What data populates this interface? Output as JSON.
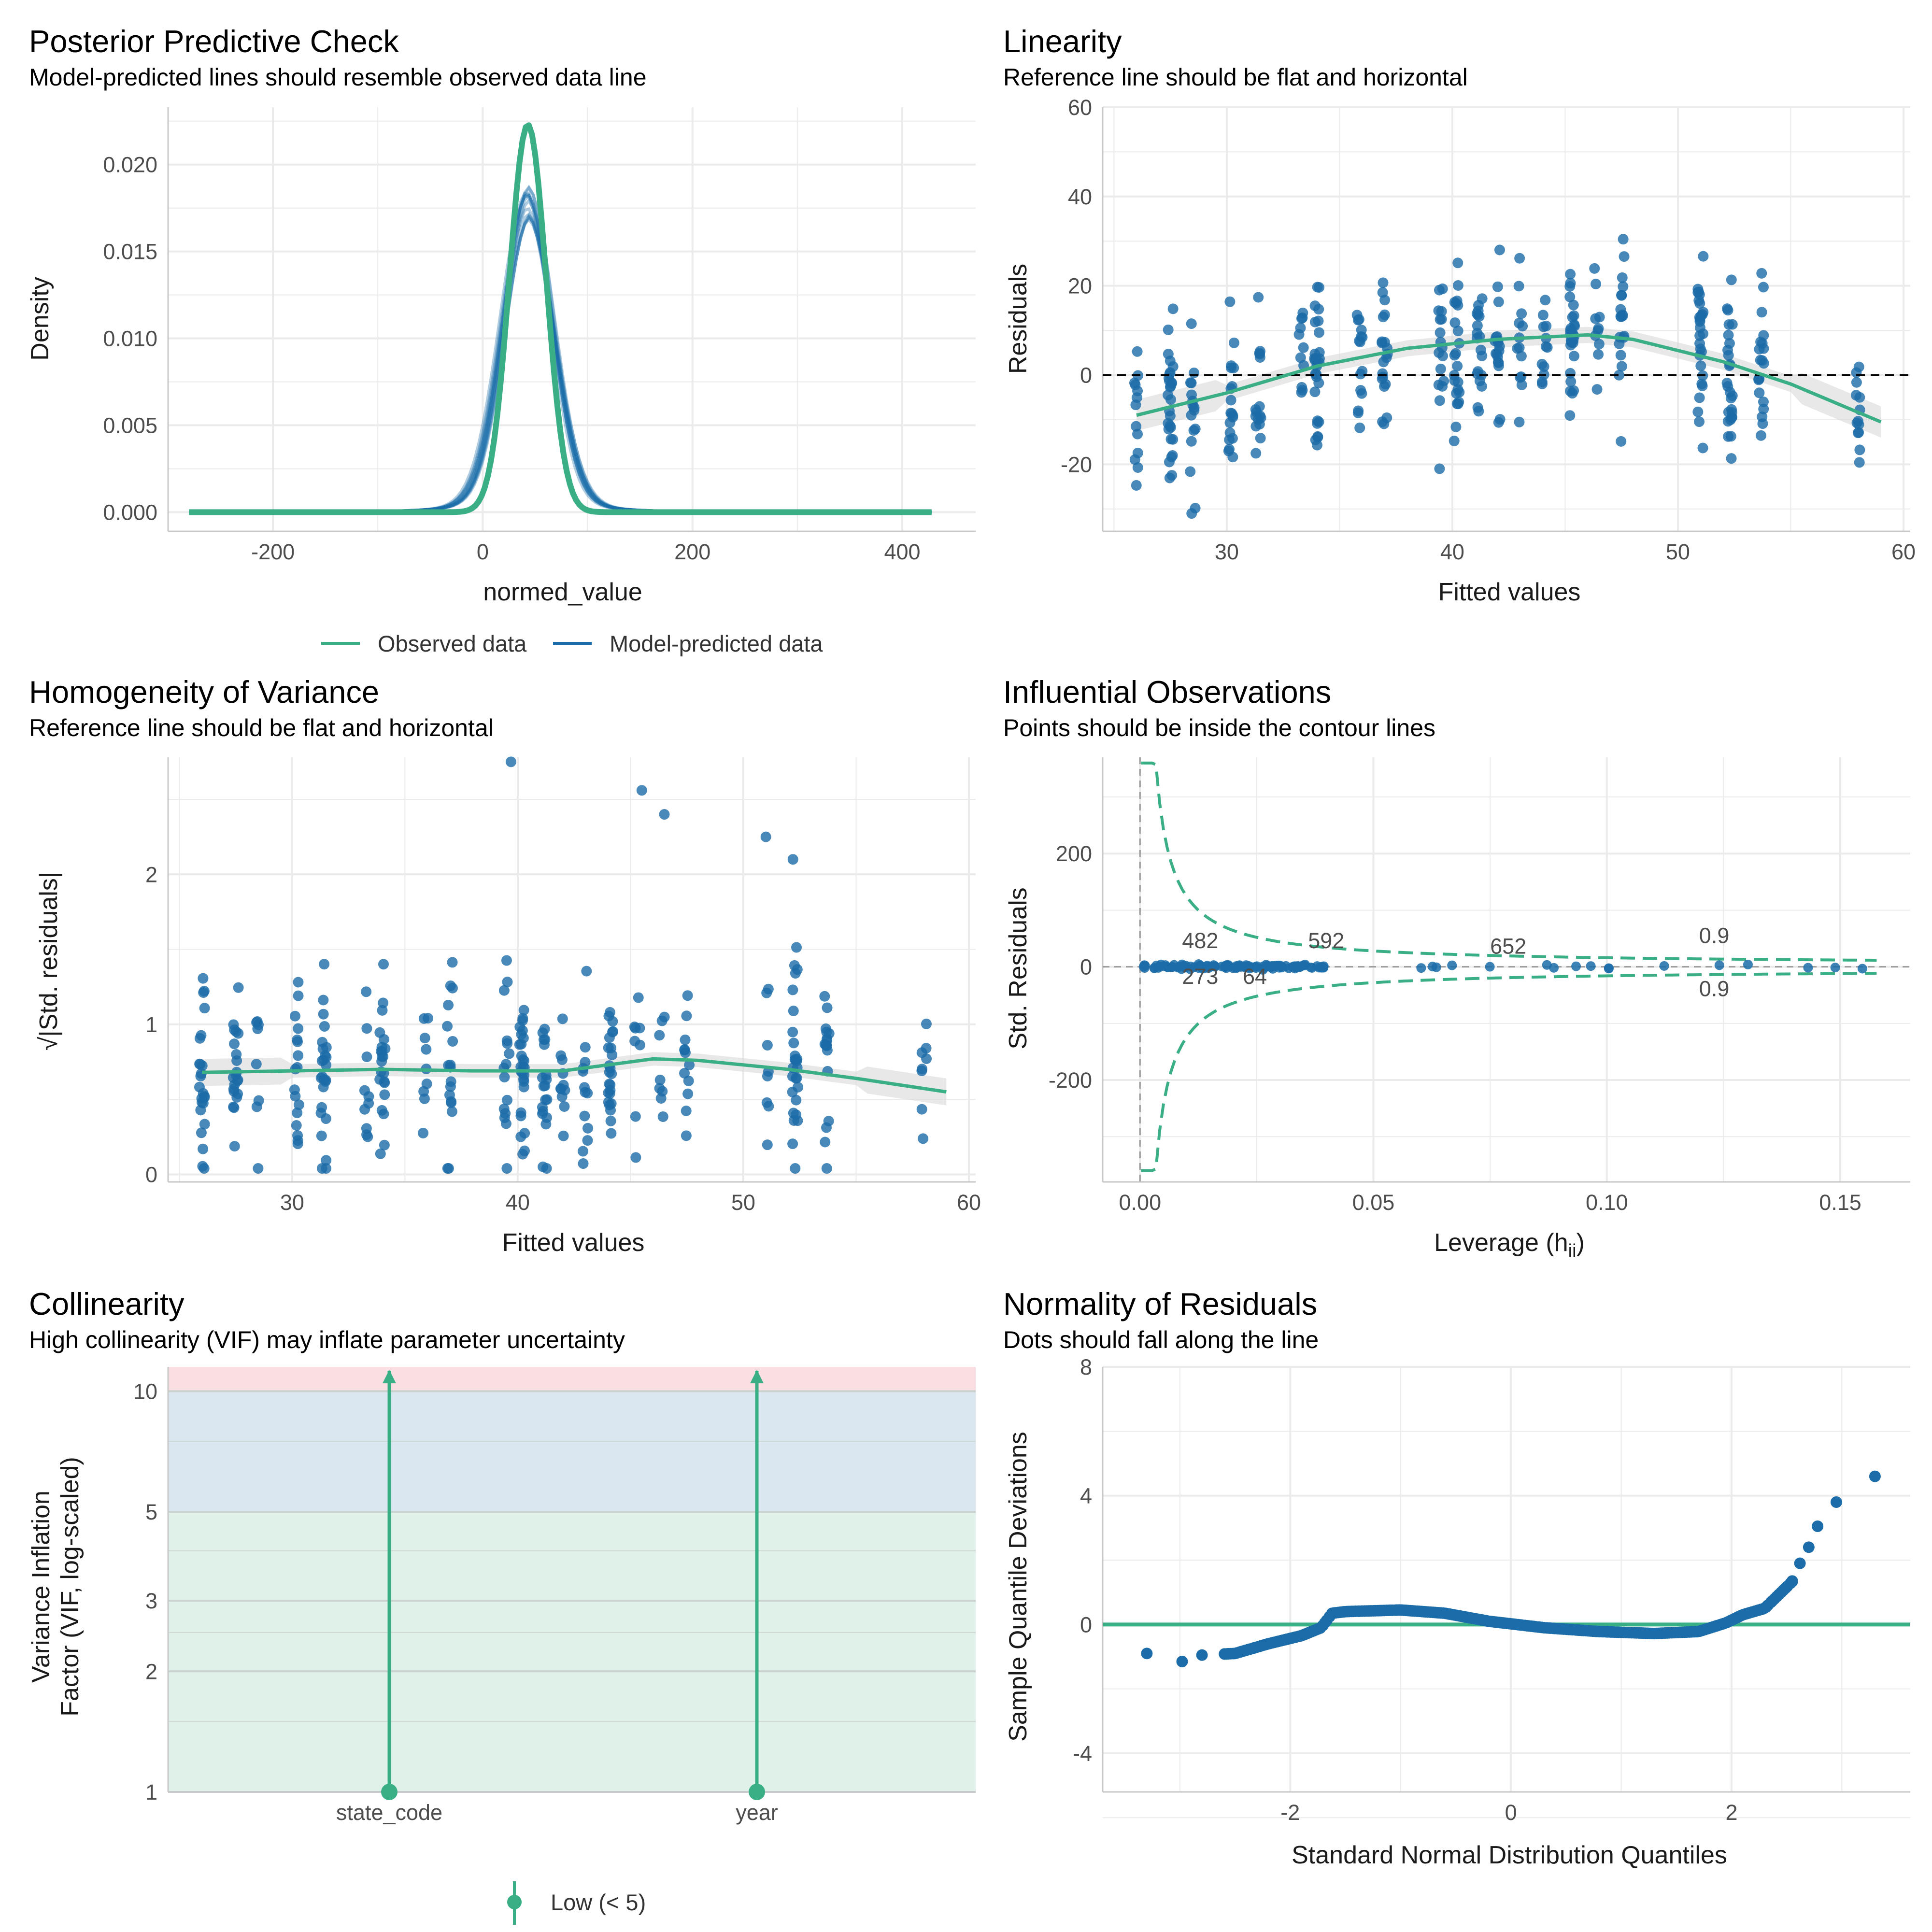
{
  "colors": {
    "observed": "#3aaf85",
    "predicted": "#1b6ca8",
    "points": "#1b6ca8",
    "green": "#3aaf85",
    "band_high": "#f9dfe1",
    "band_mod": "#dae7f1",
    "band_low": "#e0f1ea"
  },
  "panels": {
    "ppc": {
      "title": "Posterior Predictive Check",
      "subtitle": "Model-predicted lines should resemble observed data line",
      "xlabel": "normed_value",
      "ylabel": "Density",
      "legend": [
        "Observed data",
        "Model-predicted data"
      ]
    },
    "lin": {
      "title": "Linearity",
      "subtitle": "Reference line should be flat and horizontal",
      "xlabel": "Fitted values",
      "ylabel": "Residuals"
    },
    "hom": {
      "title": "Homogeneity of Variance",
      "subtitle": "Reference line should be flat and horizontal",
      "xlabel": "Fitted values",
      "ylabel": "√|Std. residuals|"
    },
    "inf": {
      "title": "Influential Observations",
      "subtitle": "Points should be inside the contour lines",
      "xlabel": "Leverage (h",
      "xlabel_sub": "ii",
      "xlabel_end": ")",
      "ylabel": "Std. Residuals"
    },
    "col": {
      "title": "Collinearity",
      "subtitle": "High collinearity (VIF) may inflate parameter uncertainty",
      "ylabel1": "Variance Inflation",
      "ylabel2": "Factor (VIF, log-scaled)",
      "legend": "Low (< 5)"
    },
    "nor": {
      "title": "Normality of Residuals",
      "subtitle": "Dots should fall along the line",
      "xlabel": "Standard Normal Distribution Quantiles",
      "ylabel": "Sample Quantile Deviations"
    }
  },
  "chart_data": [
    {
      "id": "ppc",
      "type": "line",
      "x_ticks": [
        -200,
        0,
        200,
        400
      ],
      "y_ticks": [
        "0.000",
        "0.005",
        "0.010",
        "0.015",
        "0.020"
      ],
      "xlim": [
        -300,
        470
      ],
      "ylim": [
        -0.0011,
        0.0233
      ],
      "series": [
        {
          "name": "Observed data",
          "peak_x": 43,
          "peak_y": 0.0223,
          "x_range": [
            -280,
            430
          ]
        },
        {
          "name": "Model-predicted data",
          "peak_x": 43,
          "peak_y": 0.016,
          "x_range": [
            -280,
            430
          ]
        }
      ]
    },
    {
      "id": "lin",
      "type": "scatter",
      "x_ticks": [
        30,
        40,
        50,
        60
      ],
      "y_ticks": [
        -20,
        0,
        20,
        40,
        60
      ],
      "xlim": [
        24.5,
        60.3
      ],
      "ylim": [
        -35,
        60
      ],
      "smooth": [
        [
          26,
          -9
        ],
        [
          30,
          -4
        ],
        [
          34,
          2
        ],
        [
          38,
          6
        ],
        [
          42,
          8
        ],
        [
          46,
          9
        ],
        [
          48,
          8
        ],
        [
          52,
          3
        ],
        [
          55,
          -2
        ],
        [
          59,
          -10.5
        ]
      ],
      "reference_y": 0
    },
    {
      "id": "hom",
      "type": "scatter",
      "x_ticks": [
        30,
        40,
        50,
        60
      ],
      "y_ticks": [
        0,
        1,
        2
      ],
      "xlim": [
        24.5,
        60.3
      ],
      "ylim": [
        -0.05,
        2.78
      ],
      "smooth": [
        [
          26,
          0.68
        ],
        [
          30,
          0.69
        ],
        [
          34,
          0.7
        ],
        [
          38,
          0.69
        ],
        [
          42,
          0.69
        ],
        [
          46,
          0.77
        ],
        [
          48,
          0.76
        ],
        [
          52,
          0.7
        ],
        [
          55,
          0.64
        ],
        [
          59,
          0.55
        ]
      ],
      "outliers": [
        [
          39.7,
          2.75
        ],
        [
          45.5,
          2.56
        ],
        [
          46.5,
          2.4
        ],
        [
          51,
          2.25
        ],
        [
          52.2,
          2.1
        ]
      ]
    },
    {
      "id": "inf",
      "type": "scatter",
      "x_ticks": [
        "0.00",
        "0.05",
        "0.10",
        "0.15"
      ],
      "y_ticks": [
        -200,
        0,
        200
      ],
      "xlim": [
        -0.008,
        0.165
      ],
      "ylim": [
        -380,
        370
      ],
      "contour_label": "0.9",
      "labels": [
        {
          "text": "482",
          "x": 0.009,
          "y": 33
        },
        {
          "text": "592",
          "x": 0.036,
          "y": 33
        },
        {
          "text": "652",
          "x": 0.075,
          "y": 23
        },
        {
          "text": "273",
          "x": 0.009,
          "y": -30
        },
        {
          "text": "64",
          "x": 0.022,
          "y": -30
        }
      ]
    },
    {
      "id": "col",
      "type": "bar",
      "categories": [
        "state_code",
        "year"
      ],
      "y_ticks": [
        1,
        2,
        3,
        5,
        10
      ],
      "scale": "log",
      "ylim": [
        1,
        11.5
      ],
      "band_thresholds": [
        5,
        10
      ],
      "values": [
        1,
        1
      ]
    },
    {
      "id": "nor",
      "type": "scatter",
      "x_ticks": [
        -2,
        0,
        2
      ],
      "y_ticks": [
        -4,
        0,
        4,
        8
      ],
      "xlim": [
        -3.7,
        3.62
      ],
      "ylim": [
        -5.2,
        8.0
      ],
      "reference_y": 0
    }
  ]
}
